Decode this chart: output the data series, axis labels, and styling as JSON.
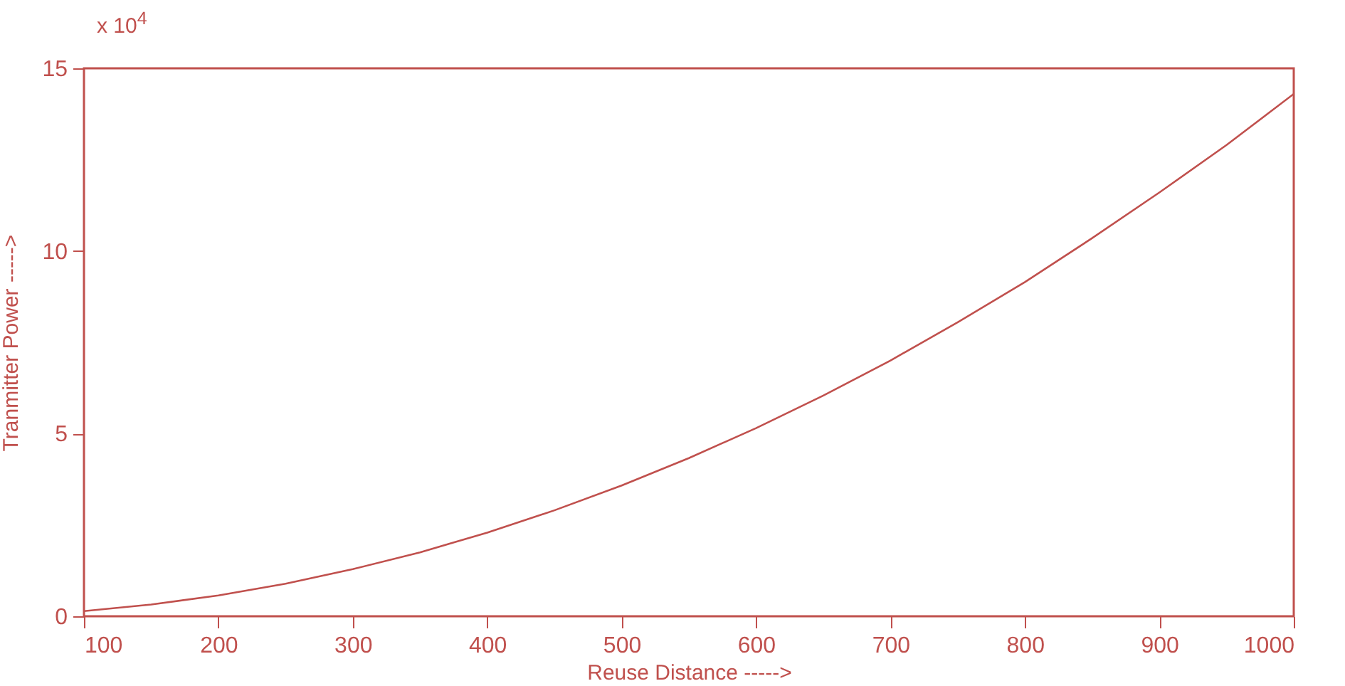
{
  "chart_data": {
    "type": "line",
    "xlabel": "Reuse Distance ----->",
    "ylabel": "Tranmitter Power ----->",
    "annotations": [
      "x 10$^{4}$"
    ],
    "x": [
      100,
      150,
      200,
      250,
      300,
      350,
      400,
      450,
      500,
      550,
      600,
      650,
      700,
      750,
      800,
      850,
      900,
      950,
      1000
    ],
    "series": [
      {
        "color": "#c0504d",
        "values": [
          0.14,
          0.32,
          0.57,
          0.89,
          1.29,
          1.75,
          2.29,
          2.9,
          3.58,
          4.33,
          5.15,
          6.04,
          7.0,
          8.05,
          9.15,
          10.35,
          11.6,
          12.9,
          14.3
        ]
      }
    ],
    "xlim": [
      100,
      1000
    ],
    "xticks": [
      100,
      200,
      300,
      400,
      500,
      600,
      700,
      800,
      900,
      1000
    ],
    "ylim": [
      0,
      15
    ],
    "yticks": [
      0,
      5,
      10,
      15
    ],
    "grid": false,
    "legend": false,
    "marker": "none",
    "line_style": "solid"
  }
}
